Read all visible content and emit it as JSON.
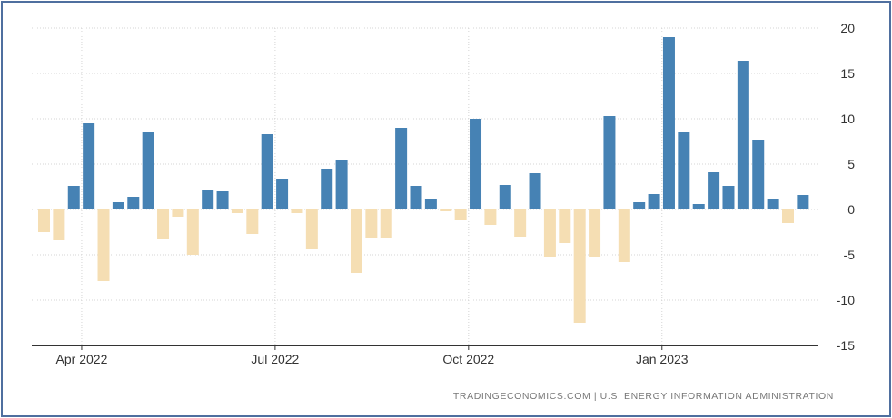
{
  "chart_data": {
    "type": "bar",
    "title": "",
    "xlabel": "",
    "ylabel": "",
    "ylim": [
      -15,
      20
    ],
    "y_ticks": [
      20,
      15,
      10,
      5,
      0,
      -5,
      -10,
      -15
    ],
    "y_axis_side": "right",
    "grid": true,
    "legend": "none",
    "x_ticks": [
      {
        "label": "Apr 2022",
        "after_bar": 2
      },
      {
        "label": "Jul 2022",
        "after_bar": 15
      },
      {
        "label": "Oct 2022",
        "after_bar": 28
      },
      {
        "label": "Jan 2023",
        "after_bar": 41
      }
    ],
    "values": [
      -2.5,
      -3.4,
      2.6,
      9.5,
      -7.9,
      0.8,
      1.4,
      8.5,
      -3.3,
      -0.8,
      -5.0,
      2.2,
      2.0,
      -0.4,
      -2.7,
      8.3,
      3.4,
      -0.4,
      -4.4,
      4.5,
      5.4,
      -7.0,
      -3.1,
      -3.2,
      9.0,
      2.6,
      1.2,
      -0.2,
      -1.2,
      10.0,
      -1.7,
      2.7,
      -3.0,
      4.0,
      -5.2,
      -3.7,
      -12.5,
      -5.2,
      10.3,
      -5.8,
      0.8,
      1.7,
      19.0,
      8.5,
      0.6,
      4.1,
      2.6,
      16.4,
      7.7,
      1.2,
      -1.5,
      1.6
    ],
    "colors": {
      "positive": "#4682b4",
      "negative": "#f5deb3",
      "grid": "#d4d4d4",
      "axis": "#333333"
    }
  },
  "source": "TRADINGECONOMICS.COM  |  U.S. ENERGY INFORMATION ADMINISTRATION"
}
